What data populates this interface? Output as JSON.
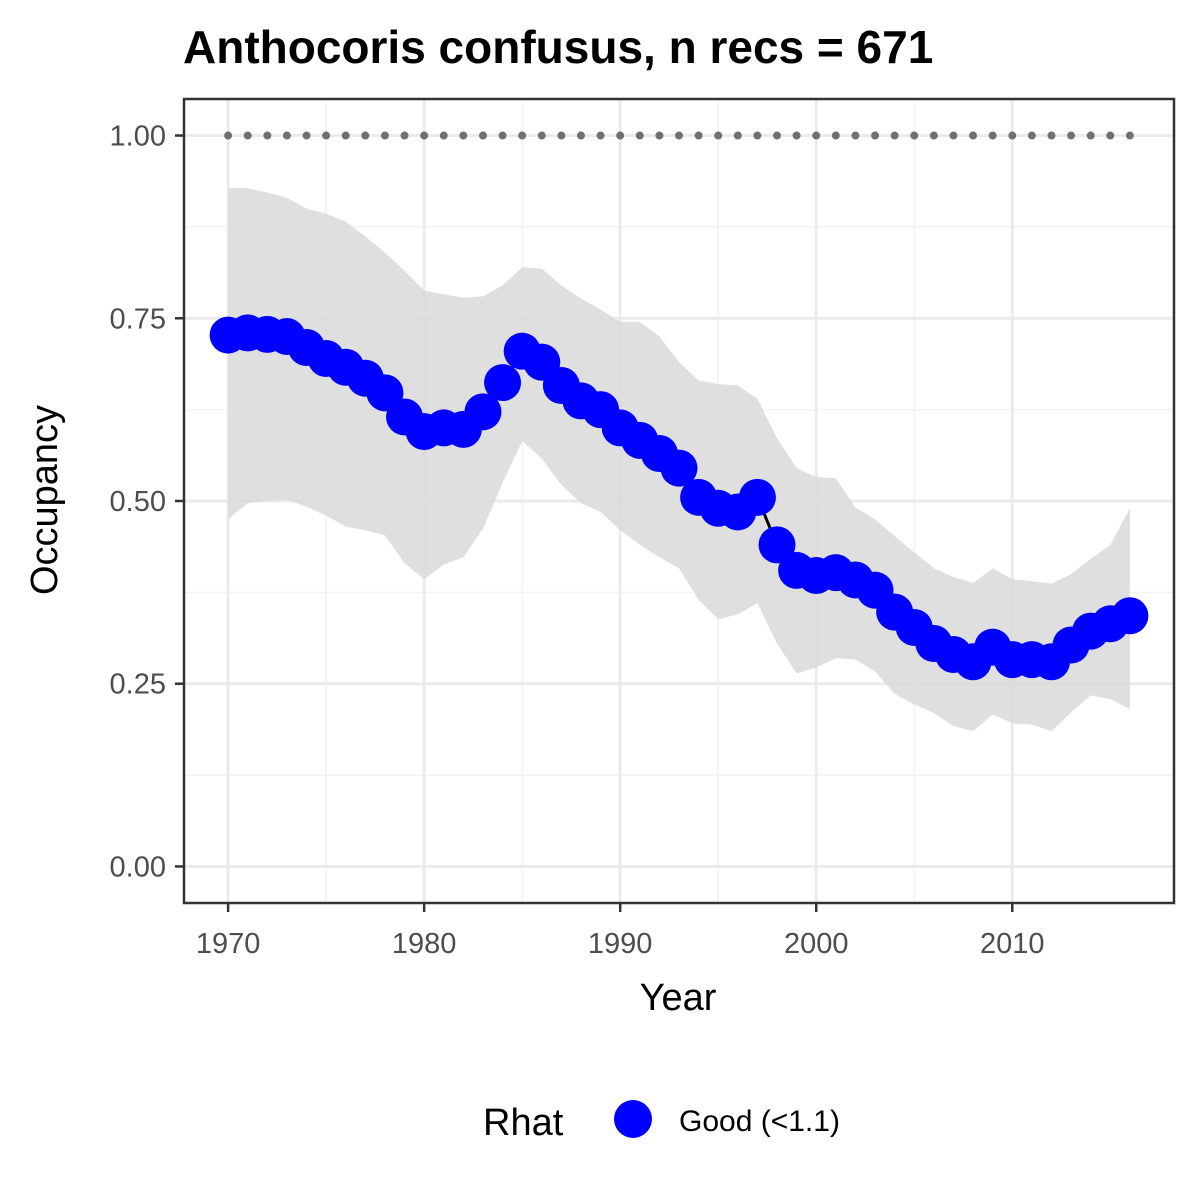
{
  "chart_data": {
    "type": "line",
    "title": "Anthocoris confusus, n recs = 671",
    "xlabel": "Year",
    "ylabel": "Occupancy",
    "xlim": [
      1967.75,
      2018.25
    ],
    "ylim": [
      -0.05,
      1.05
    ],
    "x_ticks": [
      1970,
      1980,
      1990,
      2000,
      2010
    ],
    "x_tick_labels": [
      "1970",
      "1980",
      "1990",
      "2000",
      "2010"
    ],
    "y_ticks": [
      0.0,
      0.25,
      0.5,
      0.75,
      1.0
    ],
    "y_tick_labels": [
      "0.00",
      "0.25",
      "0.50",
      "0.75",
      "1.00"
    ],
    "grid": true,
    "x": [
      1970,
      1971,
      1972,
      1973,
      1974,
      1975,
      1976,
      1977,
      1978,
      1979,
      1980,
      1981,
      1982,
      1983,
      1984,
      1985,
      1986,
      1987,
      1988,
      1989,
      1990,
      1991,
      1992,
      1993,
      1994,
      1995,
      1996,
      1997,
      1998,
      1999,
      2000,
      2001,
      2002,
      2003,
      2004,
      2005,
      2006,
      2007,
      2008,
      2009,
      2010,
      2011,
      2012,
      2013,
      2014,
      2015,
      2016
    ],
    "series": [
      {
        "type": "line",
        "color": "#000000",
        "values": [
          0.727,
          0.73,
          0.728,
          0.725,
          0.71,
          0.695,
          0.683,
          0.668,
          0.648,
          0.615,
          0.595,
          0.6,
          0.598,
          0.622,
          0.662,
          0.705,
          0.69,
          0.658,
          0.637,
          0.625,
          0.6,
          0.583,
          0.565,
          0.545,
          0.505,
          0.49,
          0.485,
          0.505,
          0.44,
          0.405,
          0.398,
          0.402,
          0.392,
          0.378,
          0.348,
          0.327,
          0.305,
          0.29,
          0.28,
          0.3,
          0.283,
          0.283,
          0.28,
          0.303,
          0.322,
          0.332,
          0.343
        ]
      },
      {
        "type": "ribbon",
        "color": "#d9d9d9",
        "lower": [
          0.475,
          0.497,
          0.5,
          0.502,
          0.492,
          0.48,
          0.465,
          0.46,
          0.453,
          0.415,
          0.393,
          0.413,
          0.423,
          0.462,
          0.525,
          0.582,
          0.558,
          0.522,
          0.497,
          0.485,
          0.46,
          0.44,
          0.423,
          0.408,
          0.365,
          0.338,
          0.345,
          0.36,
          0.305,
          0.264,
          0.272,
          0.285,
          0.283,
          0.267,
          0.236,
          0.222,
          0.21,
          0.192,
          0.185,
          0.208,
          0.196,
          0.194,
          0.185,
          0.211,
          0.234,
          0.229,
          0.215
        ],
        "upper": [
          0.928,
          0.928,
          0.922,
          0.915,
          0.9,
          0.893,
          0.882,
          0.862,
          0.84,
          0.815,
          0.788,
          0.783,
          0.778,
          0.78,
          0.795,
          0.82,
          0.818,
          0.795,
          0.777,
          0.762,
          0.745,
          0.745,
          0.725,
          0.69,
          0.665,
          0.66,
          0.658,
          0.64,
          0.586,
          0.545,
          0.533,
          0.531,
          0.491,
          0.475,
          0.452,
          0.43,
          0.408,
          0.396,
          0.388,
          0.408,
          0.393,
          0.39,
          0.387,
          0.4,
          0.421,
          0.44,
          0.49
        ]
      },
      {
        "type": "points",
        "color": "#0000ff",
        "name": "Good (<1.1)",
        "values": [
          0.727,
          0.73,
          0.728,
          0.725,
          0.71,
          0.695,
          0.683,
          0.668,
          0.648,
          0.615,
          0.595,
          0.6,
          0.598,
          0.622,
          0.662,
          0.705,
          0.69,
          0.658,
          0.637,
          0.625,
          0.6,
          0.583,
          0.565,
          0.545,
          0.505,
          0.49,
          0.485,
          0.505,
          0.44,
          0.405,
          0.398,
          0.402,
          0.392,
          0.378,
          0.348,
          0.327,
          0.305,
          0.29,
          0.28,
          0.3,
          0.283,
          0.283,
          0.28,
          0.303,
          0.322,
          0.332,
          0.343
        ]
      },
      {
        "type": "dotted-line",
        "color": "#707070",
        "values": [
          1.0,
          1.0,
          1.0,
          1.0,
          1.0,
          1.0,
          1.0,
          1.0,
          1.0,
          1.0,
          1.0,
          1.0,
          1.0,
          1.0,
          1.0,
          1.0,
          1.0,
          1.0,
          1.0,
          1.0,
          1.0,
          1.0,
          1.0,
          1.0,
          1.0,
          1.0,
          1.0,
          1.0,
          1.0,
          1.0,
          1.0,
          1.0,
          1.0,
          1.0,
          1.0,
          1.0,
          1.0,
          1.0,
          1.0,
          1.0,
          1.0,
          1.0,
          1.0,
          1.0,
          1.0,
          1.0,
          1.0
        ]
      }
    ],
    "legend": {
      "title": "Rhat",
      "position": "bottom",
      "items": [
        {
          "label": "Good (<1.1)",
          "color": "#0000ff"
        }
      ]
    }
  }
}
